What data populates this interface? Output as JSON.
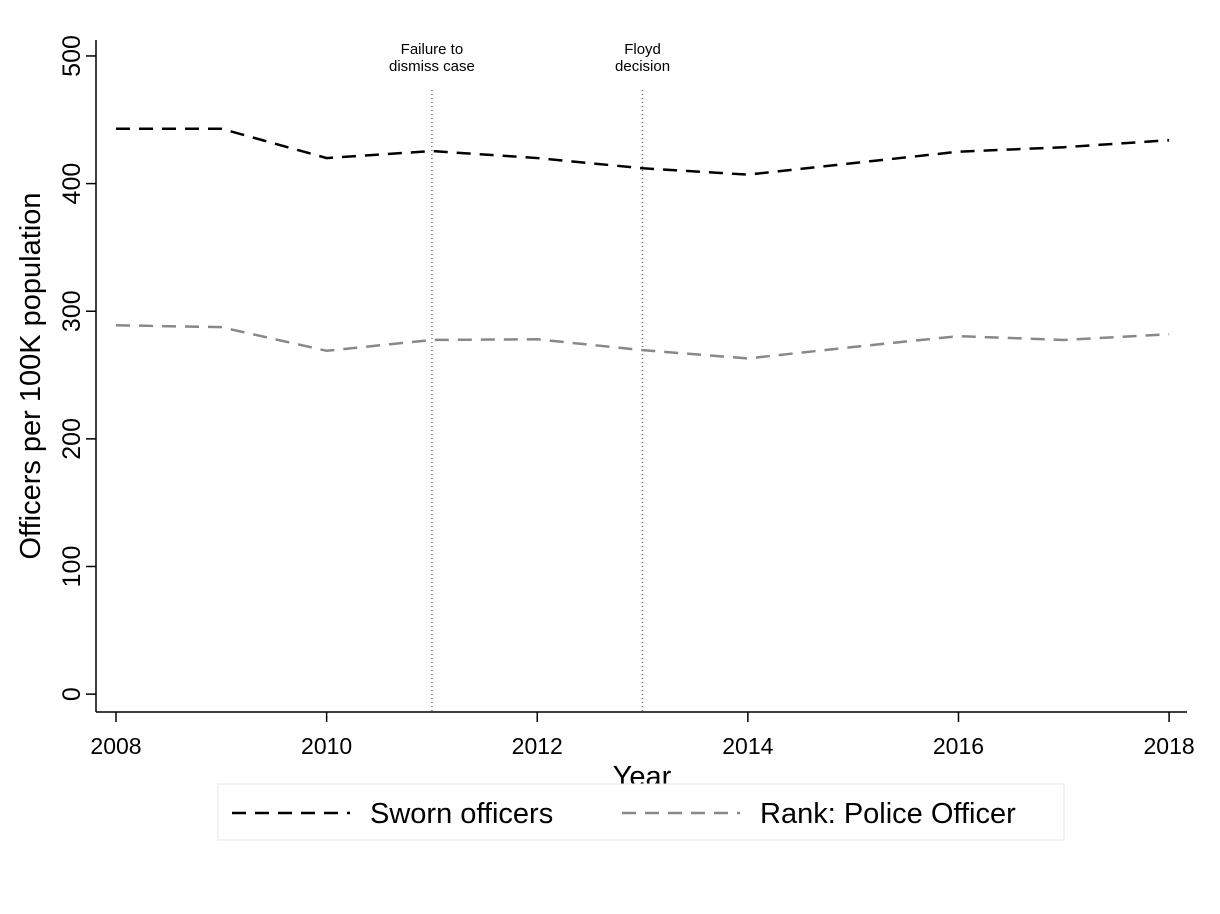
{
  "chart_data": {
    "type": "line",
    "x_label": "Year",
    "y_label": "Officers per 100K population",
    "x": [
      2008,
      2009,
      2010,
      2011,
      2012,
      2013,
      2014,
      2015,
      2016,
      2017,
      2018
    ],
    "series": [
      {
        "name": "Sworn officers",
        "color": "#000000",
        "values": [
          443,
          443,
          420,
          425.5,
          420,
          412,
          407,
          416,
          425,
          428.5,
          434
        ]
      },
      {
        "name": "Rank: Police Officer",
        "color": "#888888",
        "values": [
          289,
          287.5,
          269,
          277.5,
          278,
          269.5,
          263,
          272,
          280.5,
          277.5,
          282
        ]
      }
    ],
    "xlim": [
      2007.81,
      2018.17
    ],
    "ylim": [
      -14,
      512.5
    ],
    "xticks": [
      2008,
      2010,
      2012,
      2014,
      2016,
      2018
    ],
    "yticks": [
      0,
      100,
      200,
      300,
      400,
      500
    ],
    "annotations": [
      {
        "x": 2011,
        "text": [
          "Failure to",
          "dismiss case"
        ]
      },
      {
        "x": 2013,
        "text": [
          "Floyd",
          "decision"
        ]
      }
    ],
    "legend": "bottom",
    "grid": false
  }
}
